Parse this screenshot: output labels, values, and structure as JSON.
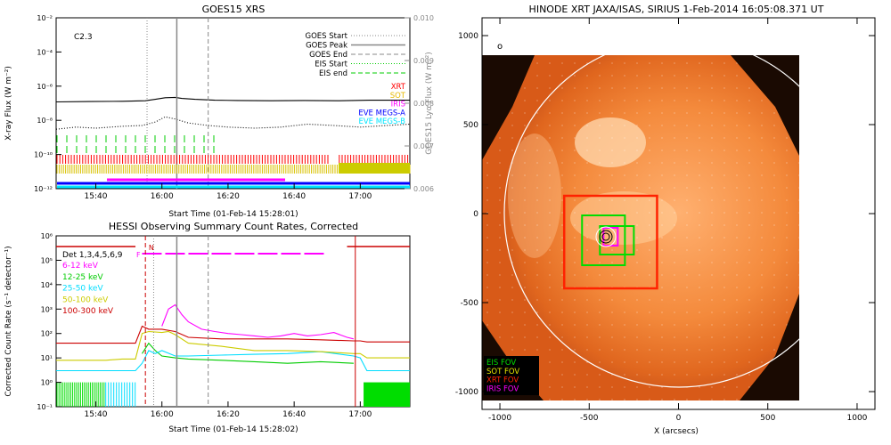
{
  "chart_data": [
    {
      "type": "line",
      "title": "GOES15 XRS",
      "xlabel": "Start Time (01-Feb-14 15:28:01)",
      "ylabel": "X-ray Flux (W m⁻²)",
      "y2label": "GOES15 Lyα Flux (W m⁻²)",
      "xticks": [
        "15:40",
        "16:00",
        "16:20",
        "16:40",
        "17:00"
      ],
      "xticks_min": [
        12,
        32,
        52,
        72,
        92
      ],
      "xlim_min": [
        0,
        107
      ],
      "yscale": "log",
      "ylim": [
        1e-12,
        0.01
      ],
      "yticks": [
        "10⁻¹²",
        "10⁻¹⁰",
        "10⁻⁸",
        "10⁻⁶",
        "10⁻⁴",
        "10⁻²"
      ],
      "y2ticks": [
        "0.006",
        "0.007",
        "0.008",
        "0.009",
        "0.010"
      ],
      "flare_class": "C2.3",
      "goes_start_min": 27.5,
      "goes_peak_min": 36.5,
      "goes_end_min": 46,
      "legend": [
        "GOES Start",
        "GOES Peak",
        "GOES End",
        "EIS Start",
        "EIS end",
        "XRT",
        "SOT",
        "IRIS",
        "EVE MEGS-A",
        "EVE MEGS-B"
      ],
      "legend_colors": [
        "#888888",
        "#888888",
        "#888888",
        "#00cc00",
        "#00cc00",
        "#ff0000",
        "#e5b800",
        "#ff00ff",
        "#0000ff",
        "#00e5ff"
      ],
      "series": [
        {
          "name": "",
          "color": "#000000",
          "x": [
            0,
            10,
            20,
            27,
            30,
            33,
            36,
            38,
            42,
            48,
            55,
            65,
            75,
            85,
            95,
            107
          ],
          "y": [
            1.2e-07,
            1.25e-07,
            1.3e-07,
            1.4e-07,
            1.7e-07,
            2.1e-07,
            2.2e-07,
            1.9e-07,
            1.7e-07,
            1.5e-07,
            1.45e-07,
            1.4e-07,
            1.45e-07,
            1.4e-07,
            1.5e-07,
            1.5e-07
          ]
        },
        {
          "name": "",
          "color": "#000000",
          "dotted": true,
          "x": [
            0,
            6,
            12,
            20,
            26,
            30,
            33,
            36,
            40,
            46,
            52,
            60,
            68,
            76,
            84,
            92,
            100,
            107
          ],
          "y": [
            3e-09,
            4e-09,
            3.5e-09,
            4.5e-09,
            5e-09,
            8e-09,
            1.6e-08,
            1.2e-08,
            7e-09,
            5e-09,
            4e-09,
            3.5e-09,
            4e-09,
            6e-09,
            5e-09,
            4e-09,
            5e-09,
            6e-09
          ]
        }
      ]
    },
    {
      "type": "line",
      "title": "HESSI Observing Summary Count Rates, Corrected",
      "xlabel": "Start Time (01-Feb-14 15:28:02)",
      "ylabel": "Corrected Count Rate (s⁻¹ detector⁻¹)",
      "xticks": [
        "15:40",
        "16:00",
        "16:20",
        "16:40",
        "17:00"
      ],
      "xticks_min": [
        12,
        32,
        52,
        72,
        92
      ],
      "xlim_min": [
        0,
        107
      ],
      "yscale": "log",
      "ylim": [
        0.1,
        1000000.0
      ],
      "yticks": [
        "10⁻¹",
        "10⁰",
        "10¹",
        "10²",
        "10³",
        "10⁴",
        "10⁵",
        "10⁶"
      ],
      "detectors": "Det 1,3,4,5,6,9",
      "flag_labels": [
        "F",
        "N"
      ],
      "series": [
        {
          "name": "6-12 keV",
          "color": "#ff00ff",
          "x": [
            0,
            20,
            24,
            26,
            28,
            30,
            32,
            34,
            36,
            38,
            40,
            44,
            48,
            52,
            56,
            60,
            64,
            68,
            72,
            76,
            80,
            84,
            88,
            90
          ],
          "y": [
            null,
            null,
            null,
            null,
            null,
            null,
            200,
            1000,
            1500,
            600,
            300,
            150,
            120,
            100,
            90,
            80,
            70,
            80,
            100,
            80,
            90,
            110,
            70,
            60
          ]
        },
        {
          "name": "12-25 keV",
          "color": "#00cc00",
          "x": [
            0,
            24,
            26,
            28,
            30,
            32,
            36,
            40,
            50,
            60,
            70,
            80,
            90,
            92,
            100,
            107
          ],
          "y": [
            null,
            null,
            15,
            40,
            20,
            12,
            10,
            9,
            8,
            7,
            6,
            7,
            6,
            null,
            null,
            null
          ]
        },
        {
          "name": "25-50 keV",
          "color": "#00ddff",
          "x": [
            0,
            24,
            26,
            28,
            30,
            32,
            36,
            40,
            50,
            60,
            70,
            80,
            90,
            92,
            94,
            100,
            107
          ],
          "y": [
            3,
            3,
            6,
            20,
            15,
            20,
            12,
            12,
            13,
            14,
            15,
            18,
            12,
            10,
            3,
            3,
            3
          ]
        },
        {
          "name": "50-100 keV",
          "color": "#cccc00",
          "x": [
            0,
            5,
            10,
            15,
            20,
            24,
            26,
            28,
            32,
            34,
            36,
            40,
            50,
            60,
            70,
            80,
            90,
            92,
            94,
            100,
            107
          ],
          "y": [
            8,
            8,
            8,
            8,
            9,
            9,
            100,
            120,
            110,
            120,
            90,
            40,
            30,
            20,
            20,
            18,
            15,
            15,
            10,
            10,
            10
          ]
        },
        {
          "name": "100-300 keV",
          "color": "#cc0000",
          "x": [
            0,
            10,
            20,
            24,
            26,
            28,
            32,
            36,
            40,
            50,
            60,
            70,
            80,
            90,
            92,
            94,
            100,
            107
          ],
          "y": [
            40,
            40,
            40,
            40,
            200,
            150,
            150,
            120,
            70,
            60,
            60,
            60,
            55,
            50,
            50,
            45,
            45,
            45
          ]
        }
      ]
    },
    {
      "type": "map",
      "title": "HINODE XRT JAXA/ISAS, SIRIUS   1-Feb-2014 16:05:08.371 UT",
      "xlabel": "X (arcsecs)",
      "xticks": [
        "-1000",
        "-500",
        "0",
        "500",
        "1000"
      ],
      "yticks": [
        "1000",
        "500",
        "0",
        "-500",
        "-1000"
      ],
      "xlim": [
        -1100,
        1100
      ],
      "ylim": [
        -1100,
        1100
      ],
      "legend": [
        "EIS FOV",
        "SOT FOV",
        "XRT FOV",
        "IRIS FOV"
      ],
      "legend_colors": [
        "#00dd00",
        "#e5e500",
        "#ff2200",
        "#ff00ff"
      ],
      "fov_boxes": [
        {
          "name": "XRT FOV",
          "color": "#ff2200",
          "x": [
            -640,
            -120
          ],
          "y": [
            -420,
            100
          ]
        },
        {
          "name": "EIS FOV",
          "color": "#00dd00",
          "x": [
            -540,
            -300
          ],
          "y": [
            -290,
            -10
          ]
        },
        {
          "name": "EIS FOV",
          "color": "#00dd00",
          "x": [
            -440,
            -250
          ],
          "y": [
            -230,
            -70
          ]
        },
        {
          "name": "IRIS FOV",
          "color": "#ff00ff",
          "x": [
            -420,
            -340
          ],
          "y": [
            -180,
            -80
          ]
        }
      ]
    }
  ]
}
